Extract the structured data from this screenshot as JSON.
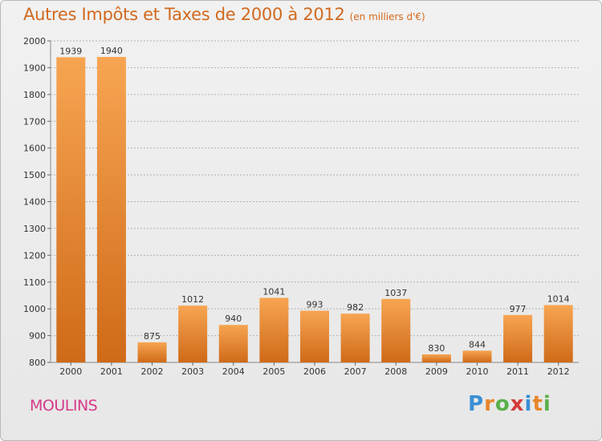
{
  "header": {
    "title": "Autres Impôts et Taxes de 2000 à 2012",
    "unit": "(en milliers d'€)"
  },
  "footer": {
    "city": "MOULINS",
    "logo": [
      "P",
      "r",
      "o",
      "x",
      "i",
      "t",
      "i"
    ]
  },
  "colors": {
    "title": "#d2691e",
    "city": "#d53a8a",
    "bar_light": "#f7a552",
    "bar_dark": "#cf6a18",
    "grid": "#b0b0b0",
    "logo": [
      "#3a8fd4",
      "#e8862a",
      "#5ab04a",
      "#d43a3a",
      "#3a8fd4",
      "#e8862a",
      "#5ab04a"
    ]
  },
  "chart_data": {
    "type": "bar",
    "categories": [
      "2000",
      "2001",
      "2002",
      "2003",
      "2004",
      "2005",
      "2006",
      "2007",
      "2008",
      "2009",
      "2010",
      "2011",
      "2012"
    ],
    "values": [
      1939,
      1940,
      875,
      1012,
      940,
      1041,
      993,
      982,
      1037,
      830,
      844,
      977,
      1014
    ],
    "ylim": [
      800,
      2000
    ],
    "yticks": [
      800,
      900,
      1000,
      1100,
      1200,
      1300,
      1400,
      1500,
      1600,
      1700,
      1800,
      1900,
      2000
    ],
    "grid": true,
    "data_labels": true
  }
}
